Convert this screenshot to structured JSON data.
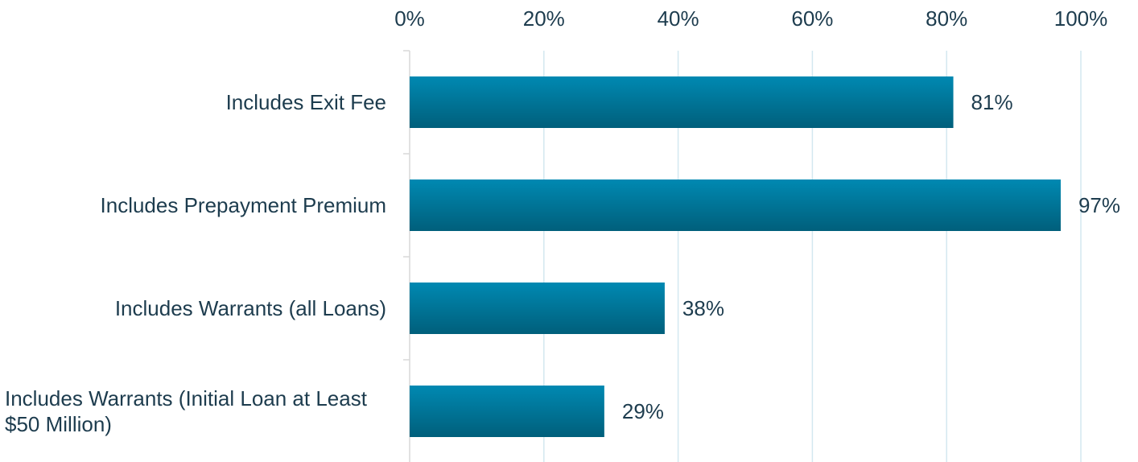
{
  "chart_data": {
    "type": "bar",
    "orientation": "horizontal",
    "categories": [
      "Includes Exit Fee",
      "Includes Prepayment Premium",
      "Includes Warrants (all Loans)",
      "Includes Warrants (Initial Loan at Least $50 Million)"
    ],
    "values": [
      81,
      97,
      38,
      29
    ],
    "value_labels": [
      "81%",
      "97%",
      "38%",
      "29%"
    ],
    "color": "#00789c",
    "xlim": [
      0,
      100
    ],
    "xticks": [
      {
        "value": 0,
        "label": "0%"
      },
      {
        "value": 20,
        "label": "20%"
      },
      {
        "value": 40,
        "label": "40%"
      },
      {
        "value": 60,
        "label": "60%"
      },
      {
        "value": 80,
        "label": "80%"
      },
      {
        "value": 100,
        "label": "100%"
      }
    ],
    "grid": true
  }
}
